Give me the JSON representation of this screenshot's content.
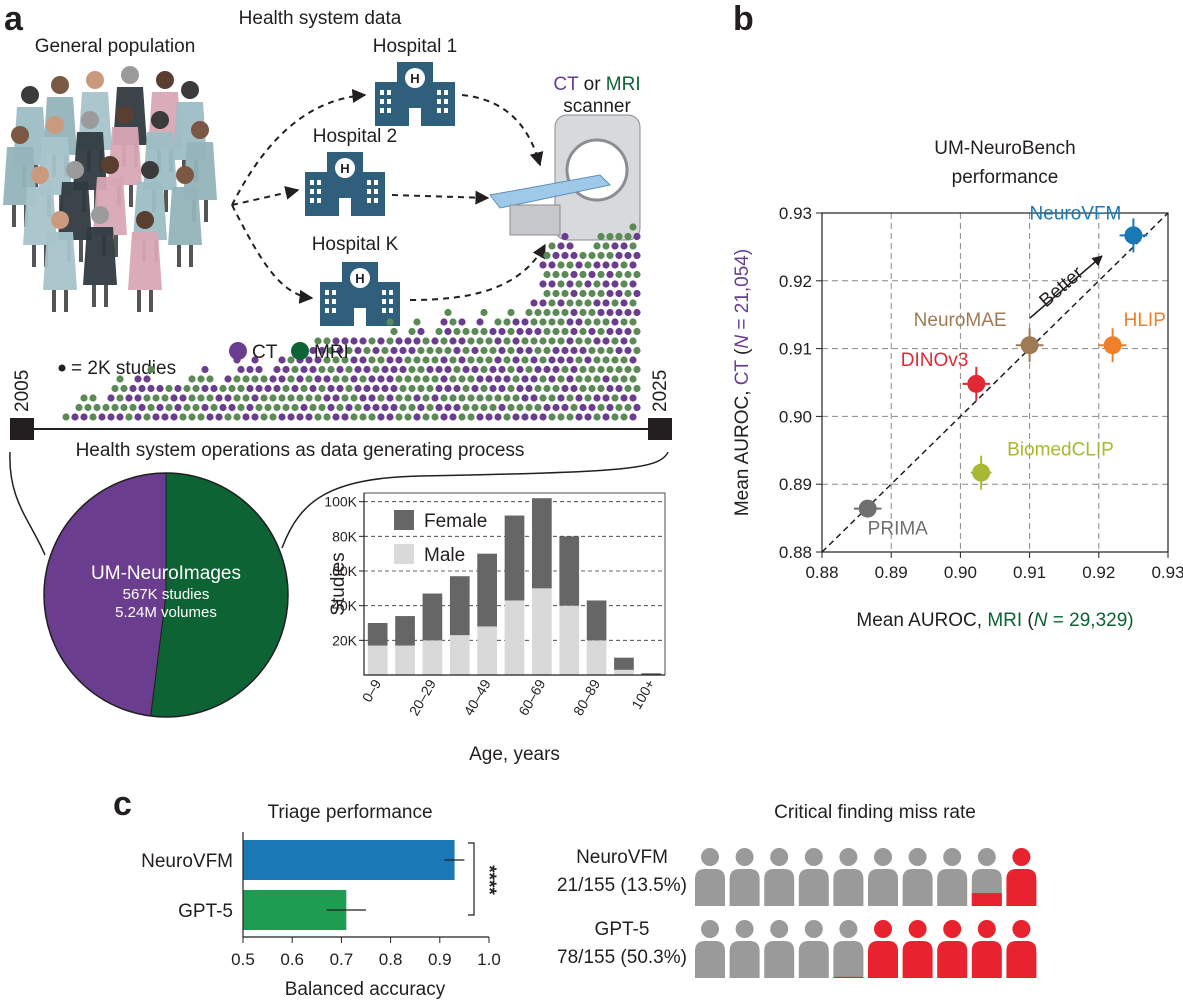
{
  "panel_labels": [
    "a",
    "b",
    "c"
  ],
  "diagram": {
    "title": "Health system data",
    "population": "General population",
    "hospitals": [
      "Hospital 1",
      "Hospital 2",
      "Hospital K"
    ],
    "scanner": {
      "ct": "CT",
      "or": " or ",
      "mri": "MRI",
      "label": "scanner"
    },
    "dot_key": "= 2K studies",
    "timeline": {
      "start": "2005",
      "end": "2025",
      "caption": "Health system operations as data generating process"
    }
  },
  "chart_data": [
    {
      "type": "pie",
      "title": "UM-NeuroImages",
      "subtitle": [
        "567K studies",
        "5.24M volumes"
      ],
      "categories": [
        "CT",
        "MRI"
      ],
      "values": [
        48,
        52
      ],
      "colors": [
        "#6b3d8e",
        "#0d6334"
      ]
    },
    {
      "type": "stacked_bar",
      "categories": [
        "0–9",
        null,
        "20–29",
        null,
        "40–49",
        null,
        "60–69",
        null,
        "80–89",
        null,
        "100+"
      ],
      "series": [
        {
          "name": "Male",
          "color": "#d9d9d9",
          "values": [
            17000,
            17000,
            20000,
            23000,
            28000,
            43000,
            50000,
            40000,
            20000,
            3000,
            0
          ]
        },
        {
          "name": "Female",
          "color": "#666666",
          "values": [
            13000,
            17000,
            27000,
            34000,
            42000,
            49000,
            52000,
            40000,
            23000,
            7000,
            1000
          ]
        }
      ],
      "ylim": [
        0,
        105000
      ],
      "yticks": [
        {
          "value": 20000,
          "label": "20K"
        },
        {
          "value": 40000,
          "label": "40K"
        },
        {
          "value": 60000,
          "label": "60K"
        },
        {
          "value": 80000,
          "label": "80K"
        },
        {
          "value": 100000,
          "label": "100K"
        }
      ],
      "ylabel": "Studies",
      "xlabel": "Age, years",
      "grid": true
    },
    {
      "type": "scatter",
      "title": [
        "UM-NeuroBench",
        "performance"
      ],
      "xlabel": [
        "Mean AUROC, ",
        "MRI",
        " (",
        "N",
        " = 29,329)"
      ],
      "ylabel": [
        "Mean AUROC, ",
        "CT",
        " (",
        "N",
        " = 21,054)"
      ],
      "annotation": "Better",
      "xlim": [
        0.88,
        0.93
      ],
      "ylim": [
        0.88,
        0.93
      ],
      "xticks": [
        0.88,
        0.89,
        {
          "value": 0.9,
          "label": "0.90"
        },
        0.91,
        0.92,
        0.93
      ],
      "yticks": [
        0.88,
        0.89,
        {
          "value": 0.9,
          "label": "0.90"
        },
        0.91,
        0.92,
        0.93
      ],
      "grid": true,
      "series": [
        {
          "name": "NeuroVFM",
          "color": "#1a78b5",
          "x": 0.925,
          "y": 0.9267,
          "xerr": 0.002,
          "yerr": 0.0025
        },
        {
          "name": "NeuroMAE",
          "color": "#a07a55",
          "x": 0.91,
          "y": 0.9105,
          "xerr": 0.002,
          "yerr": 0.0025
        },
        {
          "name": "HLIP",
          "color": "#f07f2b",
          "x": 0.922,
          "y": 0.9105,
          "xerr": 0.002,
          "yerr": 0.0025
        },
        {
          "name": "DINOv3",
          "color": "#e02935",
          "x": 0.9023,
          "y": 0.9048,
          "xerr": 0.002,
          "yerr": 0.0025
        },
        {
          "name": "BiomedCLIP",
          "color": "#a8b830",
          "x": 0.903,
          "y": 0.8917,
          "xerr": 0.0015,
          "yerr": 0.0025
        },
        {
          "name": "PRIMA",
          "color": "#6f6f6f",
          "x": 0.8866,
          "y": 0.8864,
          "xerr": 0.002,
          "yerr": 0.0005
        }
      ]
    },
    {
      "type": "hbar",
      "title": "Triage performance",
      "categories": [
        "NeuroVFM",
        "GPT-5"
      ],
      "values": [
        0.93,
        0.71
      ],
      "errors": [
        0.02,
        0.04
      ],
      "colors": [
        "#1a78b5",
        "#1e9c52"
      ],
      "xlim": [
        0.5,
        1.0
      ],
      "xticks": [
        0.5,
        0.6,
        0.7,
        0.8,
        0.9,
        {
          "value": 1,
          "label": "1.0"
        }
      ],
      "xlabel": "Balanced accuracy",
      "annotation": "****"
    },
    {
      "type": "icon_array",
      "title": "Critical finding miss rate",
      "categories": [
        "NeuroVFM",
        "GPT-5"
      ],
      "values": [
        13.5,
        50.3
      ],
      "value_labels": [
        "21/155 (13.5%)",
        "78/155 (50.3%)"
      ],
      "color": "#e8222f",
      "base_color": "#9a9a9a"
    }
  ]
}
